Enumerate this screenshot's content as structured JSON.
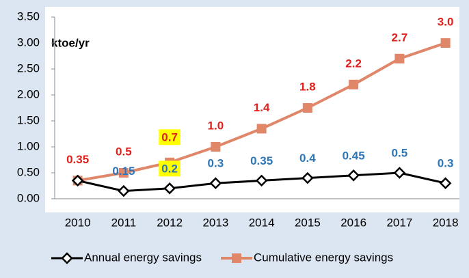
{
  "chart_data": {
    "type": "line",
    "y_label": "ktoe/yr",
    "categories": [
      "2010",
      "2011",
      "2012",
      "2013",
      "2014",
      "2015",
      "2016",
      "2017",
      "2018"
    ],
    "series": [
      {
        "name": "Annual energy savings",
        "color": "#000000",
        "label_color": "#2e75b6",
        "marker": "diamond",
        "highlighted_index": 2,
        "values": [
          0.35,
          0.15,
          0.2,
          0.3,
          0.35,
          0.4,
          0.45,
          0.5,
          0.3
        ],
        "value_labels": [
          null,
          "0.15",
          "0.2",
          "0.3",
          "0.35",
          "0.4",
          "0.45",
          "0.5",
          "0.3"
        ]
      },
      {
        "name": "Cumulative energy savings",
        "color": "#e0876a",
        "label_color": "#e0201b",
        "marker": "square",
        "highlighted_index": 2,
        "values": [
          0.35,
          0.5,
          0.7,
          1.0,
          1.35,
          1.75,
          2.2,
          2.7,
          3.0
        ],
        "value_labels": [
          "0.35",
          "0.5",
          "0.7",
          "1.0",
          "1.4",
          "1.8",
          "2.2",
          "2.7",
          "3.0"
        ]
      }
    ],
    "ylim": [
      0,
      3.5
    ],
    "yticks": [
      {
        "value": 0,
        "label": "0.00"
      },
      {
        "value": 0.5,
        "label": "0.50"
      },
      {
        "value": 1,
        "label": "1.00"
      },
      {
        "value": 1.5,
        "label": "1.50"
      },
      {
        "value": 2,
        "label": "2.00"
      },
      {
        "value": 2.5,
        "label": "2.50"
      },
      {
        "value": 3,
        "label": "3.00"
      },
      {
        "value": 3.5,
        "label": "3.50"
      }
    ],
    "grid": false
  }
}
